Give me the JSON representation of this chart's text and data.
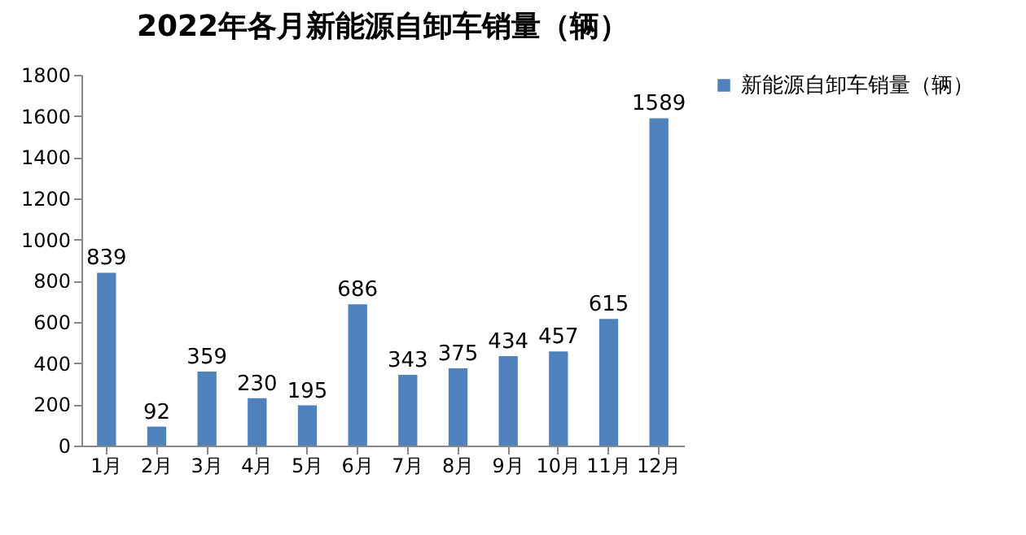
{
  "chart_data": {
    "type": "bar",
    "title": "2022年各月新能源自卸车销量（辆）",
    "categories": [
      "1月",
      "2月",
      "3月",
      "4月",
      "5月",
      "6月",
      "7月",
      "8月",
      "9月",
      "10月",
      "11月",
      "12月"
    ],
    "series": [
      {
        "name": "新能源自卸车销量（辆）",
        "color": "#4f81bd",
        "values": [
          839,
          92,
          359,
          230,
          195,
          686,
          343,
          375,
          434,
          457,
          615,
          1589
        ]
      }
    ],
    "ylim": [
      0,
      1800
    ],
    "yticks": [
      0,
      200,
      400,
      600,
      800,
      1000,
      1200,
      1400,
      1600,
      1800
    ],
    "data_labels": true,
    "legend": "right",
    "grid": false
  }
}
